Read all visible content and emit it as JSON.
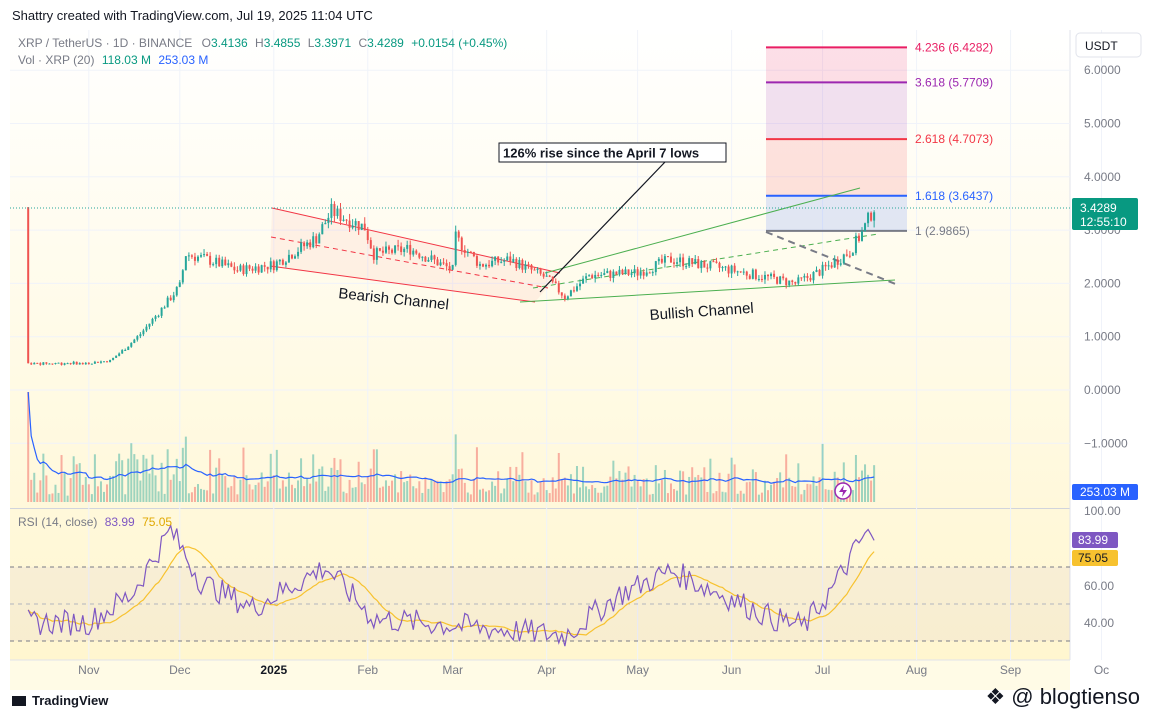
{
  "header": {
    "attribution": "Shattry created with TradingView.com, Jul 19, 2025 11:04 UTC"
  },
  "legend": {
    "symbol": "XRP / TetherUS · 1D · BINANCE",
    "o_label": "O",
    "o": "3.4136",
    "h_label": "H",
    "h": "3.4855",
    "l_label": "L",
    "l": "3.3971",
    "c_label": "C",
    "c": "3.4289",
    "change": "+0.0154 (+0.45%)",
    "vol_label": "Vol · XRP (20)",
    "vol1": "118.03 M",
    "vol2": "253.03 M"
  },
  "currency_button": "USDT",
  "price_axis": [
    "6.0000",
    "5.0000",
    "4.0000",
    "3.0000",
    "2.0000",
    "1.0000",
    "0.0000",
    "−1.0000"
  ],
  "price_tag": {
    "price": "3.4289",
    "countdown": "12:55:10"
  },
  "volume_tag": "253.03 M",
  "fib_levels": [
    {
      "label": "4.236 (6.4282)",
      "color": "#e91e63"
    },
    {
      "label": "3.618 (5.7709)",
      "color": "#9c27b0"
    },
    {
      "label": "2.618 (4.7073)",
      "color": "#f23645"
    },
    {
      "label": "1.618 (3.6437)",
      "color": "#2962ff"
    },
    {
      "label": "1 (2.9865)",
      "color": "#787b86"
    }
  ],
  "annotations": {
    "callout": "126% rise since the April 7 lows",
    "bearish": "Bearish Channel",
    "bullish": "Bullish Channel"
  },
  "rsi": {
    "label": "RSI (14, close)",
    "value": "83.99",
    "ma": "75.05",
    "axis": [
      "100.00",
      "60.00",
      "40.00"
    ]
  },
  "time_axis": [
    "Nov",
    "Dec",
    "2025",
    "Feb",
    "Mar",
    "Apr",
    "May",
    "Jun",
    "Jul",
    "Aug",
    "Sep",
    "Oc"
  ],
  "footer": {
    "brand": "TradingView",
    "watermark": "@ blogtienso"
  },
  "colors": {
    "up": "#26a69a",
    "down": "#ef5350",
    "volume_ma": "#2962ff",
    "rsi": "#7e57c2",
    "rsi_ma": "#f7c22f"
  },
  "chart_data": {
    "type": "candlestick",
    "symbol": "XRP / TetherUS",
    "interval": "1D",
    "x": [
      "2024-11-01",
      "2024-11-08",
      "2024-11-13",
      "2024-11-18",
      "2024-11-24",
      "2024-12-01",
      "2024-12-03",
      "2024-12-10",
      "2024-12-20",
      "2025-01-01",
      "2025-01-15",
      "2025-01-20",
      "2025-01-31",
      "2025-02-03",
      "2025-02-15",
      "2025-03-01",
      "2025-03-02",
      "2025-03-10",
      "2025-03-20",
      "2025-04-01",
      "2025-04-07",
      "2025-04-15",
      "2025-05-01",
      "2025-05-12",
      "2025-06-01",
      "2025-06-22",
      "2025-07-01",
      "2025-07-10",
      "2025-07-14",
      "2025-07-18"
    ],
    "close": [
      0.51,
      0.55,
      0.78,
      1.05,
      1.45,
      1.95,
      2.55,
      2.45,
      2.25,
      2.35,
      2.85,
      3.35,
      3.05,
      2.55,
      2.65,
      2.25,
      2.85,
      2.35,
      2.45,
      2.1,
      1.75,
      2.15,
      2.2,
      2.45,
      2.25,
      2.0,
      2.25,
      2.6,
      2.95,
      3.43
    ],
    "volume_ma_label": "253.03 M",
    "rsi": {
      "period": 14,
      "last": 83.99,
      "ma_last": 75.05,
      "levels": [
        70,
        50,
        30
      ]
    },
    "fibonacci": [
      {
        "ratio": 1,
        "price": 2.9865
      },
      {
        "ratio": 1.618,
        "price": 3.6437
      },
      {
        "ratio": 2.618,
        "price": 4.7073
      },
      {
        "ratio": 3.618,
        "price": 5.7709
      },
      {
        "ratio": 4.236,
        "price": 6.4282
      }
    ],
    "ylim": [
      -1.5,
      6.9
    ],
    "rsi_ylim": [
      20,
      100
    ]
  }
}
